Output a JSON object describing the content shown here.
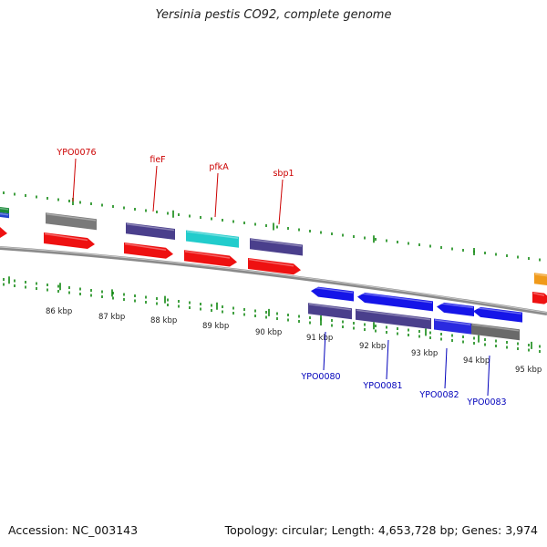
{
  "title": "Yersinia pestis CO92, complete genome",
  "footer": {
    "accession": "Accession: NC_003143",
    "topology": "Topology: circular; Length: 4,653,728 bp; Genes: 3,974"
  },
  "scale": {
    "labels": [
      "86 kbp",
      "87 kbp",
      "88 kbp",
      "89 kbp",
      "90 kbp",
      "91 kbp",
      "92 kbp",
      "93 kbp",
      "94 kbp",
      "95 kbp"
    ]
  },
  "colors": {
    "red_gene": "#ee1111",
    "blue_gene": "#1515e8",
    "purple_feature": "#4a3f8c",
    "gray_feature": "#7a7a7a",
    "cyan_feature": "#22cccc",
    "orange_feature": "#f09a1a",
    "tick_green": "#118811",
    "backbone": "#8a8a8a",
    "top_label": "#cc0000",
    "bottom_label": "#0000bb"
  },
  "genes": {
    "forward_labels": [
      "YPO0076",
      "fieF",
      "pfkA",
      "sbp1"
    ],
    "reverse_labels": [
      "YPO0080",
      "YPO0081",
      "YPO0082",
      "YPO0083"
    ]
  }
}
